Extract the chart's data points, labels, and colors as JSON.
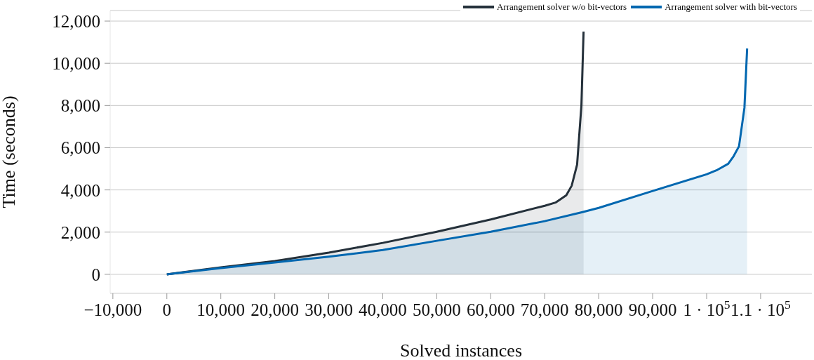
{
  "chart_data": {
    "type": "area",
    "xlabel": "Solved instances",
    "ylabel": "Time (seconds)",
    "xlim": [
      -10500,
      119500
    ],
    "ylim": [
      -900,
      12500
    ],
    "xticks": [
      {
        "value": -10000,
        "label": "−10,000"
      },
      0,
      {
        "value": 10000,
        "label": "10,000"
      },
      {
        "value": 20000,
        "label": "20,000"
      },
      {
        "value": 30000,
        "label": "30,000"
      },
      {
        "value": 40000,
        "label": "40,000"
      },
      {
        "value": 50000,
        "label": "50,000"
      },
      {
        "value": 60000,
        "label": "60,000"
      },
      {
        "value": 70000,
        "label": "70,000"
      },
      {
        "value": 80000,
        "label": "80,000"
      },
      {
        "value": 90000,
        "label": "90,000"
      },
      {
        "value": 100000,
        "label": "1 · 10$^{5}$"
      },
      {
        "value": 110000,
        "label": "1.1 · 10$^{5}$"
      }
    ],
    "yticks": [
      0,
      {
        "value": 2000,
        "label": "2,000"
      },
      {
        "value": 4000,
        "label": "4,000"
      },
      {
        "value": 6000,
        "label": "6,000"
      },
      {
        "value": 8000,
        "label": "8,000"
      },
      {
        "value": 10000,
        "label": "10,000"
      },
      {
        "value": 12000,
        "label": "12,000"
      }
    ],
    "grid": "y",
    "legend": "top right",
    "marker": "none",
    "line_style": "solid",
    "series": [
      {
        "name": "Arrangement solver w/o bit-vectors",
        "color": "#25313b",
        "x": [
          0,
          10000,
          20000,
          30000,
          40000,
          50000,
          60000,
          70000,
          72000,
          74000,
          75000,
          76000,
          76800,
          77200
        ],
        "values": [
          0,
          330,
          630,
          1030,
          1490,
          2020,
          2600,
          3250,
          3400,
          3750,
          4200,
          5200,
          8000,
          11500
        ]
      },
      {
        "name": "Arrangement solver with bit-vectors",
        "color": "#0067b0",
        "x": [
          0,
          10000,
          20000,
          30000,
          40000,
          50000,
          60000,
          70000,
          77000,
          80000,
          90000,
          100000,
          102000,
          104000,
          105000,
          106000,
          107000,
          107500
        ],
        "values": [
          0,
          300,
          560,
          840,
          1150,
          1590,
          2020,
          2520,
          2950,
          3150,
          3950,
          4740,
          4950,
          5240,
          5600,
          6070,
          7890,
          10700
        ]
      }
    ]
  }
}
